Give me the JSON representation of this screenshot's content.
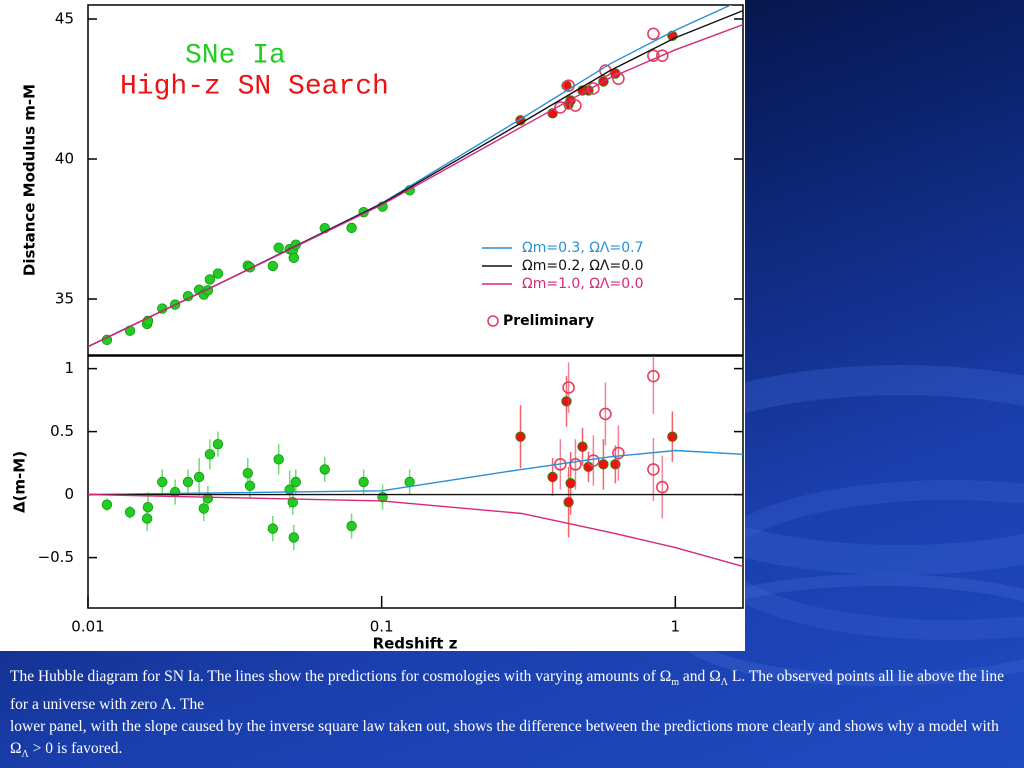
{
  "chart_data": [
    {
      "type": "scatter",
      "x_scale": "log",
      "xlim": [
        0.01,
        1.7
      ],
      "ylim": [
        33,
        45.5
      ],
      "yticks": [
        35,
        40,
        45
      ],
      "ylabel": "Distance Modulus m-M",
      "series": [
        {
          "name": "SNe Ia",
          "kind": "points",
          "marker": "filled",
          "color": "#22cc22",
          "x": [
            0.0116,
            0.0139,
            0.0159,
            0.016,
            0.0179,
            0.0198,
            0.0219,
            0.0239,
            0.0248,
            0.0256,
            0.026,
            0.0277,
            0.035,
            0.0356,
            0.0426,
            0.0446,
            0.0486,
            0.0498,
            0.0502,
            0.051,
            0.064,
            0.079,
            0.0868,
            0.1007,
            0.1245
          ],
          "values": [
            33.54,
            33.87,
            34.11,
            34.22,
            34.66,
            34.8,
            35.1,
            35.33,
            35.16,
            35.31,
            35.7,
            35.91,
            36.19,
            36.13,
            36.18,
            36.83,
            36.78,
            36.73,
            36.47,
            36.94,
            37.53,
            37.54,
            38.1,
            38.3,
            38.88
          ]
        },
        {
          "name": "High-z SN Search",
          "kind": "points",
          "marker": "filled",
          "color": "#ee1111",
          "x": [
            0.297,
            0.382,
            0.426,
            0.433,
            0.44,
            0.483,
            0.506,
            0.569,
            0.625,
            0.977
          ],
          "values": [
            41.38,
            41.63,
            42.62,
            41.95,
            42.09,
            42.45,
            42.45,
            42.77,
            43.05,
            44.4
          ]
        },
        {
          "name": "Preliminary",
          "kind": "points",
          "marker": "open",
          "color": "#e64060",
          "x": [
            0.406,
            0.433,
            0.457,
            0.526,
            0.578,
            0.64,
            0.842,
            0.842,
            0.903
          ],
          "values": [
            41.84,
            42.62,
            41.91,
            42.52,
            43.16,
            42.87,
            44.47,
            43.69,
            43.69
          ]
        },
        {
          "name": "Ωm=0.3,  ΩΛ=0.7",
          "kind": "line",
          "color": "#2a8fd6",
          "x": [
            0.01,
            0.03,
            0.1,
            0.3,
            0.6,
            1,
            1.7
          ],
          "values": [
            33.3,
            35.7,
            38.42,
            41.45,
            43.4,
            44.6,
            45.7
          ]
        },
        {
          "name": "Ωm=0.2,  ΩΛ=0.0",
          "kind": "line",
          "color": "#111111",
          "x": [
            0.01,
            0.03,
            0.1,
            0.3,
            0.6,
            1,
            1.7
          ],
          "values": [
            33.3,
            35.7,
            38.4,
            41.3,
            43.16,
            44.33,
            45.3
          ]
        },
        {
          "name": "Ωm=1.0,  ΩΛ=0.0",
          "kind": "line",
          "color": "#d6287a",
          "x": [
            0.01,
            0.03,
            0.1,
            0.3,
            0.6,
            1,
            1.7
          ],
          "values": [
            33.3,
            35.7,
            38.36,
            41.15,
            42.9,
            43.9,
            44.8
          ]
        }
      ]
    },
    {
      "type": "scatter",
      "x_scale": "log",
      "xlim": [
        0.01,
        1.7
      ],
      "ylim": [
        -0.9,
        1.1
      ],
      "xticks": [
        0.01,
        0.1,
        1
      ],
      "yticks": [
        {
          "value": -0.5,
          "label": "−0.5"
        },
        0,
        0.5,
        1
      ],
      "xlabel": "Redshift z",
      "ylabel": "Δ(m-M)",
      "series": [
        {
          "kind": "points",
          "marker": "filled",
          "color": "#22cc22",
          "x": [
            0.0116,
            0.0139,
            0.0159,
            0.016,
            0.0179,
            0.0198,
            0.0219,
            0.0239,
            0.0248,
            0.0256,
            0.026,
            0.0277,
            0.035,
            0.0356,
            0.0426,
            0.0446,
            0.0486,
            0.0498,
            0.0502,
            0.051,
            0.064,
            0.079,
            0.0868,
            0.1007,
            0.1245
          ],
          "values": [
            -0.08,
            -0.14,
            -0.19,
            -0.1,
            0.1,
            0.02,
            0.1,
            0.14,
            -0.11,
            -0.03,
            0.32,
            0.4,
            0.17,
            0.07,
            -0.27,
            0.28,
            0.04,
            -0.06,
            -0.34,
            0.1,
            0.2,
            -0.25,
            0.1,
            -0.02,
            0.1
          ],
          "errors": [
            0.05,
            0.05,
            0.1,
            0.12,
            0.1,
            0.1,
            0.1,
            0.15,
            0.1,
            0.1,
            0.12,
            0.1,
            0.12,
            0.1,
            0.1,
            0.12,
            0.15,
            0.1,
            0.1,
            0.1,
            0.1,
            0.1,
            0.1,
            0.1,
            0.1
          ]
        },
        {
          "kind": "points",
          "marker": "filled",
          "color": "#ee1111",
          "x": [
            0.297,
            0.382,
            0.426,
            0.433,
            0.44,
            0.483,
            0.506,
            0.569,
            0.625,
            0.977
          ],
          "values": [
            0.46,
            0.14,
            0.74,
            -0.06,
            0.09,
            0.38,
            0.22,
            0.24,
            0.24,
            0.46
          ],
          "errors": [
            0.25,
            0.15,
            0.2,
            0.28,
            0.25,
            0.15,
            0.12,
            0.2,
            0.15,
            0.2
          ]
        },
        {
          "kind": "points",
          "marker": "open",
          "color": "#e64060",
          "x": [
            0.406,
            0.433,
            0.457,
            0.526,
            0.578,
            0.64,
            0.842,
            0.842,
            0.903
          ],
          "values": [
            0.24,
            0.85,
            0.24,
            0.27,
            0.64,
            0.33,
            0.94,
            0.2,
            0.06
          ],
          "errors": [
            0.2,
            0.2,
            0.2,
            0.2,
            0.25,
            0.22,
            0.3,
            0.25,
            0.25
          ]
        },
        {
          "kind": "line",
          "color": "#2a8fd6",
          "x": [
            0.01,
            0.1,
            0.3,
            0.6,
            1,
            1.7
          ],
          "values": [
            0,
            0.03,
            0.2,
            0.3,
            0.35,
            0.32
          ]
        },
        {
          "kind": "line",
          "color": "#111111",
          "x": [
            0.01,
            1.7
          ],
          "values": [
            0,
            0
          ]
        },
        {
          "kind": "line",
          "color": "#d6287a",
          "x": [
            0.01,
            0.1,
            0.3,
            0.6,
            1,
            1.7
          ],
          "values": [
            0,
            -0.05,
            -0.15,
            -0.3,
            -0.42,
            -0.57
          ]
        }
      ]
    }
  ],
  "caption": {
    "paragraph_1": [
      "The Hubble diagram for SN Ia. The lines show the predictions for cosmologies with varying amounts of  ",
      "Ω",
      "m",
      " and ",
      "Ω",
      "Λ",
      " L. The observed points all lie above the line for a universe with zero Λ. The"
    ],
    "paragraph_2": [
      "lower panel, with the slope caused by the inverse square law taken out, shows the difference between the predictions more clearly and shows why a model with ",
      "Ω",
      "Λ",
      " > 0 is favored."
    ]
  }
}
